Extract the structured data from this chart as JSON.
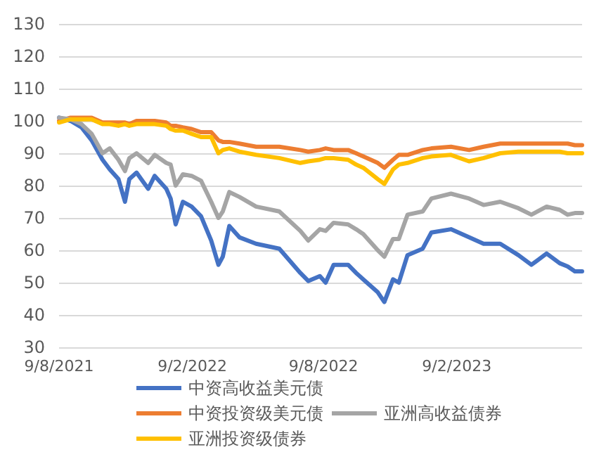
{
  "chart_data": {
    "type": "line",
    "x": [
      "2021-08-09",
      "2021-08-25",
      "2021-09-09",
      "2021-09-23",
      "2021-10-08",
      "2021-10-18",
      "2021-10-30",
      "2021-11-08",
      "2021-11-14",
      "2021-11-24",
      "2021-12-10",
      "2021-12-19",
      "2022-01-04",
      "2022-01-10",
      "2022-01-17",
      "2022-01-27",
      "2022-02-08",
      "2022-02-21",
      "2022-03-07",
      "2022-03-17",
      "2022-03-23",
      "2022-04-01",
      "2022-04-15",
      "2022-05-08",
      "2022-06-09",
      "2022-07-08",
      "2022-07-19",
      "2022-08-04",
      "2022-08-12",
      "2022-08-23",
      "2022-09-12",
      "2022-09-23",
      "2022-10-03",
      "2022-10-23",
      "2022-11-01",
      "2022-11-13",
      "2022-11-21",
      "2022-12-03",
      "2022-12-24",
      "2023-01-05",
      "2023-02-01",
      "2023-02-26",
      "2023-03-18",
      "2023-04-10",
      "2023-05-05",
      "2023-05-23",
      "2023-06-13",
      "2023-07-01",
      "2023-07-12",
      "2023-07-22",
      "2023-08-01"
    ],
    "series": [
      {
        "name": "中资高收益美元债",
        "color": "#4472c4",
        "values": [
          101,
          100,
          98,
          94,
          88,
          85,
          82,
          75,
          82,
          84,
          79,
          83,
          79,
          76,
          68,
          75,
          73.5,
          70.5,
          63,
          55.5,
          58,
          67.5,
          64,
          62,
          60.5,
          53,
          50.5,
          52,
          50,
          55.5,
          55.5,
          53,
          51,
          47,
          44,
          51,
          50,
          58.5,
          60.5,
          65.5,
          66.5,
          64,
          62,
          62,
          58.5,
          55.5,
          59,
          56,
          55,
          53.5,
          53.5
        ]
      },
      {
        "name": "中资投资级美元债",
        "color": "#ed7d31",
        "values": [
          100,
          101,
          101,
          101,
          99.5,
          99.5,
          99.5,
          99.5,
          99,
          100,
          100,
          100,
          99.5,
          98.5,
          98.5,
          98,
          97.5,
          96.5,
          96.5,
          94,
          93.5,
          93.5,
          93,
          92,
          92,
          91,
          90.5,
          91,
          91.5,
          91,
          91,
          90,
          89,
          87,
          85.5,
          88,
          89.5,
          89.5,
          91,
          91.5,
          92,
          91,
          92,
          93,
          93,
          93,
          93,
          93,
          93,
          92.5,
          92.5
        ]
      },
      {
        "name": "亚洲高收益债券",
        "color": "#a5a5a5",
        "values": [
          101,
          100.5,
          99,
          96,
          90,
          91.5,
          88,
          84.5,
          88.5,
          90,
          87,
          89.5,
          87,
          86.5,
          80,
          83.5,
          83,
          81.5,
          75,
          70,
          72,
          78,
          76.5,
          73.5,
          72,
          66,
          63,
          66.5,
          66,
          68.5,
          68,
          66.5,
          65,
          60,
          58,
          63.5,
          63.5,
          71,
          72,
          76,
          77.5,
          76,
          74,
          75,
          73,
          71,
          73.5,
          72.5,
          71,
          71.5,
          71.5
        ]
      },
      {
        "name": "亚洲投资级债券",
        "color": "#ffc000",
        "values": [
          99.5,
          100.5,
          100.5,
          100.5,
          99,
          99,
          98.5,
          99,
          98.5,
          99,
          99,
          99,
          98.5,
          97.5,
          97,
          97,
          96,
          95,
          95,
          90,
          91,
          91.5,
          90.5,
          89.5,
          88.5,
          87,
          87.5,
          88,
          88.5,
          88.5,
          88,
          86.5,
          85.5,
          82,
          80.5,
          85,
          86.5,
          87,
          88.5,
          89,
          89.5,
          87.5,
          88.5,
          90,
          90.5,
          90.5,
          90.5,
          90.5,
          90,
          90,
          90
        ]
      }
    ],
    "xlim": [
      "2021-08-09",
      "2023-08-01"
    ],
    "xticks": [
      {
        "value": "2021-08-09",
        "label": "9/8/2021"
      },
      {
        "value": "2022-02-09",
        "label": "9/2/2022"
      },
      {
        "value": "2022-08-09",
        "label": "9/8/2022"
      },
      {
        "value": "2023-02-09",
        "label": "9/2/2023"
      }
    ],
    "ylim": [
      30,
      130
    ],
    "yticks": [
      30,
      40,
      50,
      60,
      70,
      80,
      90,
      100,
      110,
      120,
      130
    ],
    "grid": "y",
    "legend": "bottom",
    "marker": "none",
    "line_style": "solid"
  }
}
